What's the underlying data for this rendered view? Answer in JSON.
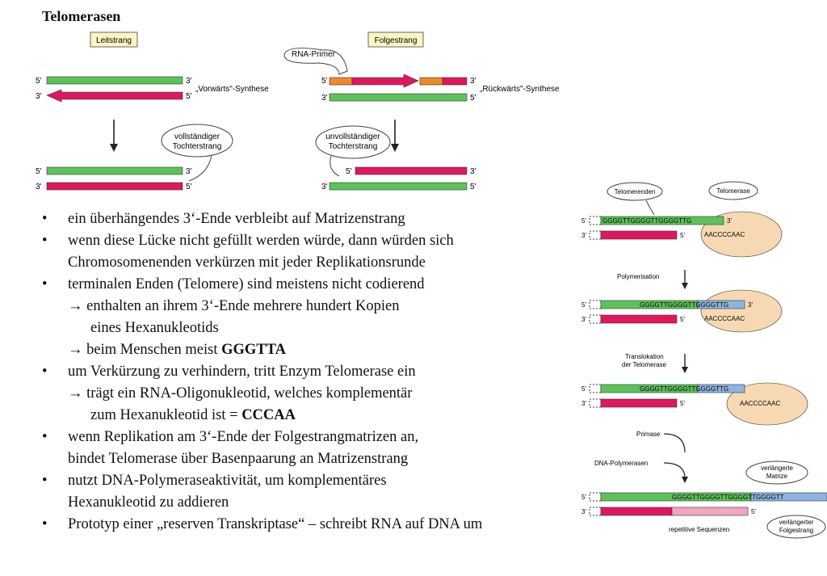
{
  "title": "Telomerasen",
  "fig_left": {
    "leitstrang": "Leitstrang",
    "folgestrang": "Folgestrang",
    "rna_primer": "RNA-Primer",
    "p5": "5'",
    "p3": "3'",
    "vorwaerts": "„Vorwärts\"-Synthese",
    "rueckwaerts": "„Rückwärts\"-Synthese",
    "vollst_1": "vollständiger",
    "vollst_2": "Tochterstrang",
    "unvollst_1": "unvollständiger",
    "unvollst_2": "Tochterstrang"
  },
  "fig_right": {
    "telomerenden": "Telomerenden",
    "telomerase": "Telomerase",
    "seq1": "GGGGTTGGGGTTGGGGTTG",
    "template": "AACCCCAAC",
    "polymerisation": "Polymerisation",
    "seq2": "GGGGTTGGGGTTGGGGTTG",
    "translokation_1": "Translokation",
    "translokation_2": "der Telomerase",
    "primase": "Primase",
    "dna_polymerasen": "DNA-Polymerasen",
    "verl_matrize_1": "verlängerte",
    "verl_matrize_2": "Matrize",
    "seq4": "GGGGTTGGGGTTGGGGTTGGGGTT",
    "repetitive": "repetitive Sequenzen",
    "verl_folge_1": "verlängerter",
    "verl_folge_2": "Folgestrang"
  },
  "bullets": [
    {
      "lines": [
        "ein überhängendes 3‘-Ende verbleibt auf Matrizenstrang"
      ]
    },
    {
      "lines": [
        "wenn diese Lücke nicht gefüllt werden würde, dann würden sich",
        "Chromosomenenden verkürzen mit jeder Replikationsrunde"
      ]
    },
    {
      "lines": [
        "terminalen Enden (Telomere) sind meistens nicht codierend"
      ],
      "arrow1": "enthalten an ihrem 3‘-Ende mehrere hundert Kopien",
      "arrow1b": "eines Hexanukleotids",
      "arrow2": "beim Menschen meist ",
      "arrow2_bold": "GGGTTA"
    },
    {
      "lines": [
        "um Verkürzung zu verhindern, tritt Enzym Telomerase ein"
      ],
      "arrow1": "trägt ein RNA-Oligonukleotid, welches komplementär",
      "arrow1b": "zum Hexanukleotid ist = ",
      "arrow1b_bold": "CCCAA"
    },
    {
      "lines": [
        "wenn Replikation am 3‘-Ende der Folgestrangmatrizen an,",
        "bindet Telomerase über Basenpaarung an Matrizenstrang"
      ]
    },
    {
      "lines": [
        "nutzt DNA-Polymeraseaktivität, um komplementäres",
        "Hexanukleotid zu addieren"
      ]
    },
    {
      "lines": [
        "Prototyp einer „reserven Transkriptase“ – schreibt RNA auf DNA um"
      ]
    }
  ],
  "arrow_glyph": "→",
  "bullet_glyph": "•",
  "colors": {
    "green": "#5cc35a",
    "magenta": "#e0165f",
    "orange": "#ef8a2a",
    "telomerase": "#f6d9b3",
    "blue": "#8db4e2",
    "pink": "#f2a6c4"
  }
}
